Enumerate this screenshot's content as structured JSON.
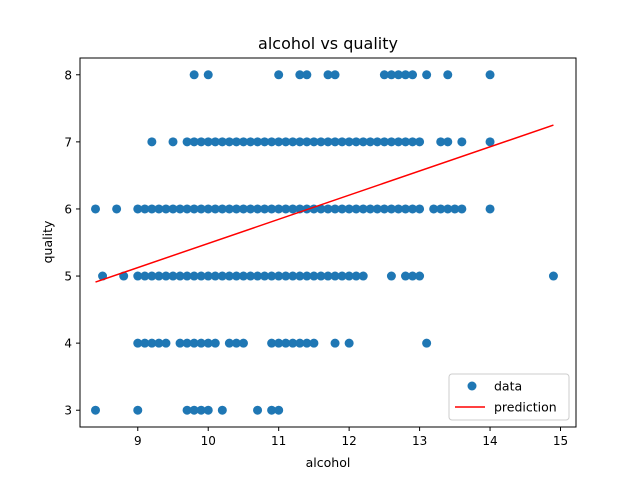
{
  "chart_data": {
    "type": "scatter",
    "title": "alcohol vs quality",
    "xlabel": "alcohol",
    "ylabel": "quality",
    "xlim": [
      8.18,
      15.22
    ],
    "ylim": [
      2.75,
      8.25
    ],
    "xticks": [
      "9",
      "10",
      "11",
      "12",
      "13",
      "14",
      "15"
    ],
    "yticks": [
      "3",
      "4",
      "5",
      "6",
      "7",
      "8"
    ],
    "grid": false,
    "legend_position": "lower-right",
    "series": [
      {
        "name": "data",
        "kind": "scatter",
        "color": "#1f77b4",
        "points": [
          [
            8.4,
            3
          ],
          [
            9.0,
            3
          ],
          [
            9.7,
            3
          ],
          [
            9.8,
            3
          ],
          [
            9.9,
            3
          ],
          [
            10.0,
            3
          ],
          [
            10.2,
            3
          ],
          [
            10.7,
            3
          ],
          [
            10.9,
            3
          ],
          [
            11.0,
            3
          ],
          [
            9.0,
            4
          ],
          [
            9.1,
            4
          ],
          [
            9.2,
            4
          ],
          [
            9.3,
            4
          ],
          [
            9.4,
            4
          ],
          [
            9.6,
            4
          ],
          [
            9.7,
            4
          ],
          [
            9.8,
            4
          ],
          [
            9.9,
            4
          ],
          [
            10.0,
            4
          ],
          [
            10.1,
            4
          ],
          [
            10.3,
            4
          ],
          [
            10.4,
            4
          ],
          [
            10.5,
            4
          ],
          [
            10.9,
            4
          ],
          [
            11.0,
            4
          ],
          [
            11.1,
            4
          ],
          [
            11.2,
            4
          ],
          [
            11.3,
            4
          ],
          [
            11.4,
            4
          ],
          [
            11.5,
            4
          ],
          [
            11.8,
            4
          ],
          [
            12.0,
            4
          ],
          [
            13.1,
            4
          ],
          [
            8.5,
            5
          ],
          [
            8.8,
            5
          ],
          [
            9.0,
            5
          ],
          [
            9.1,
            5
          ],
          [
            9.2,
            5
          ],
          [
            9.3,
            5
          ],
          [
            9.4,
            5
          ],
          [
            9.5,
            5
          ],
          [
            9.6,
            5
          ],
          [
            9.7,
            5
          ],
          [
            9.8,
            5
          ],
          [
            9.9,
            5
          ],
          [
            10.0,
            5
          ],
          [
            10.1,
            5
          ],
          [
            10.2,
            5
          ],
          [
            10.3,
            5
          ],
          [
            10.4,
            5
          ],
          [
            10.5,
            5
          ],
          [
            10.6,
            5
          ],
          [
            10.7,
            5
          ],
          [
            10.8,
            5
          ],
          [
            10.9,
            5
          ],
          [
            11.0,
            5
          ],
          [
            11.1,
            5
          ],
          [
            11.2,
            5
          ],
          [
            11.3,
            5
          ],
          [
            11.4,
            5
          ],
          [
            11.5,
            5
          ],
          [
            11.6,
            5
          ],
          [
            11.7,
            5
          ],
          [
            11.8,
            5
          ],
          [
            11.9,
            5
          ],
          [
            12.0,
            5
          ],
          [
            12.1,
            5
          ],
          [
            12.2,
            5
          ],
          [
            12.6,
            5
          ],
          [
            12.8,
            5
          ],
          [
            12.9,
            5
          ],
          [
            13.0,
            5
          ],
          [
            14.9,
            5
          ],
          [
            8.4,
            6
          ],
          [
            8.7,
            6
          ],
          [
            9.0,
            6
          ],
          [
            9.1,
            6
          ],
          [
            9.2,
            6
          ],
          [
            9.3,
            6
          ],
          [
            9.4,
            6
          ],
          [
            9.5,
            6
          ],
          [
            9.6,
            6
          ],
          [
            9.7,
            6
          ],
          [
            9.8,
            6
          ],
          [
            9.9,
            6
          ],
          [
            10.0,
            6
          ],
          [
            10.1,
            6
          ],
          [
            10.2,
            6
          ],
          [
            10.3,
            6
          ],
          [
            10.4,
            6
          ],
          [
            10.5,
            6
          ],
          [
            10.6,
            6
          ],
          [
            10.7,
            6
          ],
          [
            10.8,
            6
          ],
          [
            10.9,
            6
          ],
          [
            11.0,
            6
          ],
          [
            11.1,
            6
          ],
          [
            11.2,
            6
          ],
          [
            11.3,
            6
          ],
          [
            11.4,
            6
          ],
          [
            11.5,
            6
          ],
          [
            11.6,
            6
          ],
          [
            11.7,
            6
          ],
          [
            11.8,
            6
          ],
          [
            11.9,
            6
          ],
          [
            12.0,
            6
          ],
          [
            12.1,
            6
          ],
          [
            12.2,
            6
          ],
          [
            12.3,
            6
          ],
          [
            12.4,
            6
          ],
          [
            12.5,
            6
          ],
          [
            12.6,
            6
          ],
          [
            12.7,
            6
          ],
          [
            12.8,
            6
          ],
          [
            12.9,
            6
          ],
          [
            13.0,
            6
          ],
          [
            13.2,
            6
          ],
          [
            13.3,
            6
          ],
          [
            13.4,
            6
          ],
          [
            13.5,
            6
          ],
          [
            13.6,
            6
          ],
          [
            14.0,
            6
          ],
          [
            9.2,
            7
          ],
          [
            9.5,
            7
          ],
          [
            9.7,
            7
          ],
          [
            9.8,
            7
          ],
          [
            9.9,
            7
          ],
          [
            10.0,
            7
          ],
          [
            10.1,
            7
          ],
          [
            10.2,
            7
          ],
          [
            10.3,
            7
          ],
          [
            10.4,
            7
          ],
          [
            10.5,
            7
          ],
          [
            10.6,
            7
          ],
          [
            10.7,
            7
          ],
          [
            10.8,
            7
          ],
          [
            10.9,
            7
          ],
          [
            11.0,
            7
          ],
          [
            11.1,
            7
          ],
          [
            11.2,
            7
          ],
          [
            11.3,
            7
          ],
          [
            11.4,
            7
          ],
          [
            11.5,
            7
          ],
          [
            11.6,
            7
          ],
          [
            11.7,
            7
          ],
          [
            11.8,
            7
          ],
          [
            11.9,
            7
          ],
          [
            12.0,
            7
          ],
          [
            12.1,
            7
          ],
          [
            12.2,
            7
          ],
          [
            12.3,
            7
          ],
          [
            12.4,
            7
          ],
          [
            12.5,
            7
          ],
          [
            12.6,
            7
          ],
          [
            12.7,
            7
          ],
          [
            12.8,
            7
          ],
          [
            12.9,
            7
          ],
          [
            13.0,
            7
          ],
          [
            13.3,
            7
          ],
          [
            13.4,
            7
          ],
          [
            13.6,
            7
          ],
          [
            14.0,
            7
          ],
          [
            9.8,
            8
          ],
          [
            10.0,
            8
          ],
          [
            11.0,
            8
          ],
          [
            11.3,
            8
          ],
          [
            11.4,
            8
          ],
          [
            11.7,
            8
          ],
          [
            11.8,
            8
          ],
          [
            12.5,
            8
          ],
          [
            12.6,
            8
          ],
          [
            12.7,
            8
          ],
          [
            12.8,
            8
          ],
          [
            12.9,
            8
          ],
          [
            13.1,
            8
          ],
          [
            13.4,
            8
          ],
          [
            14.0,
            8
          ]
        ]
      },
      {
        "name": "prediction",
        "kind": "line",
        "color": "#ff0000",
        "points": [
          [
            8.4,
            4.91
          ],
          [
            14.9,
            7.25
          ]
        ]
      }
    ]
  }
}
